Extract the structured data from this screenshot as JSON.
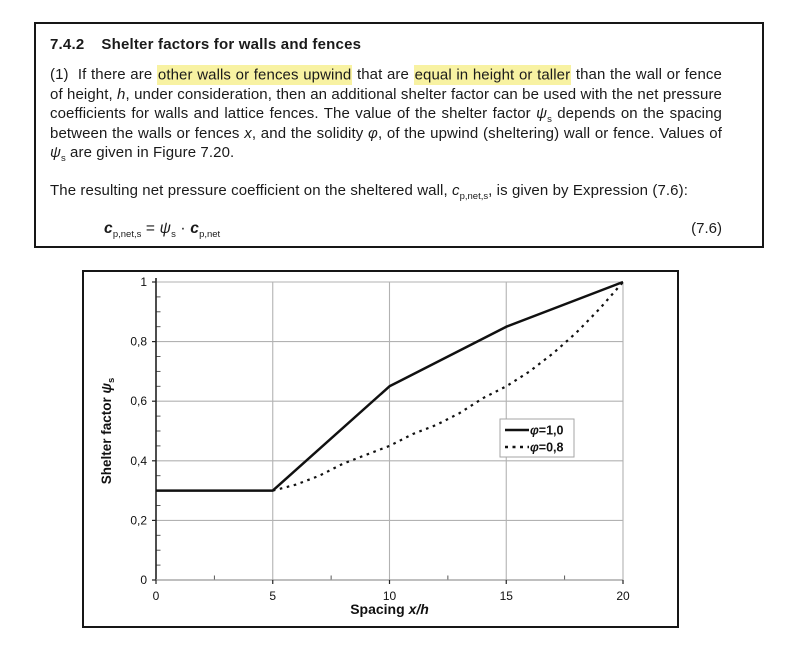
{
  "document": {
    "heading": {
      "number": "7.4.2",
      "title": "Shelter factors for walls and fences"
    },
    "highlight_color": "#f8f2a2",
    "paragraph1": [
      {
        "t": "(1)  If there are "
      },
      {
        "t": "other walls or fences upwind",
        "hl": true
      },
      {
        "t": " that are "
      },
      {
        "t": "equal in height or taller",
        "hl": true
      },
      {
        "t": " than the wall or fence of height, "
      },
      {
        "t": "h",
        "i": true
      },
      {
        "t": ", under consideration, then an additional shelter factor can be used with the net pressure coefficients for walls and lattice fences. The value of the shelter factor "
      },
      {
        "t": "ψ",
        "i": true
      },
      {
        "t": "s",
        "sub": true
      },
      {
        "t": " depends on the spacing between the walls or fences "
      },
      {
        "t": "x",
        "i": true
      },
      {
        "t": ", and the solidity "
      },
      {
        "t": "φ",
        "i": true
      },
      {
        "t": ", of the upwind (sheltering) wall or fence. Values of "
      },
      {
        "t": "ψ",
        "i": true
      },
      {
        "t": "s",
        "sub": true
      },
      {
        "t": " are given in Figure 7.20."
      }
    ],
    "paragraph2": [
      {
        "t": "The resulting net pressure coefficient on the sheltered wall, "
      },
      {
        "t": "c",
        "i": true
      },
      {
        "t": "p,net,s",
        "sub": true
      },
      {
        "t": ", is given by Expression (7.6):"
      }
    ],
    "equation": {
      "segments": [
        {
          "t": "c",
          "b": true,
          "i": true
        },
        {
          "t": "p,net,s",
          "sub": true
        },
        {
          "t": " = "
        },
        {
          "t": "ψ",
          "i": true
        },
        {
          "t": "s",
          "sub": true
        },
        {
          "t": " · "
        },
        {
          "t": "c",
          "b": true,
          "i": true
        },
        {
          "t": "p,net",
          "sub": true
        }
      ],
      "number": "(7.6)"
    }
  },
  "chart_data": {
    "type": "line",
    "title": "",
    "xlabel": "Spacing x/h",
    "xlabel_plain": "Spacing ",
    "xlabel_italic": "x/h",
    "ylabel": "Shelter factor ψs",
    "ylabel_plain": "Shelter factor ",
    "ylabel_italic": "ψ",
    "ylabel_sub": "s",
    "xlim": [
      0,
      20
    ],
    "ylim": [
      0,
      1
    ],
    "x_ticks": [
      0,
      5,
      10,
      15,
      20
    ],
    "x_tick_labels": [
      "0",
      "5",
      "10",
      "15",
      "20"
    ],
    "y_ticks": [
      0,
      0.2,
      0.4,
      0.6,
      0.8,
      1
    ],
    "y_tick_labels": [
      "0",
      "0,2",
      "0,4",
      "0,6",
      "0,8",
      "1"
    ],
    "x_minor_step": 2.5,
    "y_minor_step": 0.05,
    "grid": true,
    "legend_position": "inside-right",
    "colors": {
      "curve": "#111111",
      "grid": "#b2b2b2",
      "axis": "#222222",
      "x_axis": "#999999",
      "legend_border": "#a6a6a6"
    },
    "series": [
      {
        "name": "φ=1,0",
        "dash": "solid",
        "points": [
          [
            0,
            0.3
          ],
          [
            5,
            0.3
          ],
          [
            10,
            0.65
          ],
          [
            15,
            0.85
          ],
          [
            20,
            1.0
          ]
        ]
      },
      {
        "name": "φ=0,8",
        "dash": "dashed",
        "points": [
          [
            5,
            0.3
          ],
          [
            6,
            0.32
          ],
          [
            7,
            0.35
          ],
          [
            8,
            0.39
          ],
          [
            9,
            0.42
          ],
          [
            10,
            0.45
          ],
          [
            11,
            0.49
          ],
          [
            12,
            0.52
          ],
          [
            13,
            0.56
          ],
          [
            14,
            0.61
          ],
          [
            15,
            0.65
          ],
          [
            16,
            0.7
          ],
          [
            17,
            0.76
          ],
          [
            18,
            0.83
          ],
          [
            19,
            0.91
          ],
          [
            20,
            1.0
          ]
        ]
      }
    ]
  }
}
